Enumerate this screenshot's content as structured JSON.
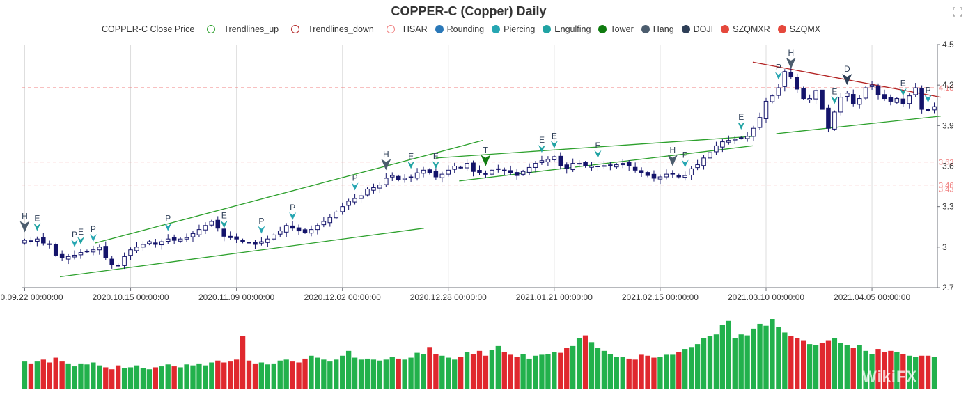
{
  "chart_data": {
    "type": "candlestick",
    "title": "COPPER-C (Copper) Daily",
    "legend": {
      "placement": "top-center",
      "entries": [
        {
          "name": "COPPER-C Close Price",
          "kind": "none",
          "color": ""
        },
        {
          "name": "Trendlines_up",
          "kind": "line",
          "color": "#2ca02c"
        },
        {
          "name": "Trendlines_down",
          "kind": "line",
          "color": "#b22222"
        },
        {
          "name": "HSAR",
          "kind": "line",
          "color": "#f08080"
        },
        {
          "name": "Rounding",
          "kind": "dot",
          "color": "#2a78b8"
        },
        {
          "name": "Piercing",
          "kind": "dot",
          "color": "#26a6b2"
        },
        {
          "name": "Engulfing",
          "kind": "dot",
          "color": "#20a3a3"
        },
        {
          "name": "Tower",
          "kind": "dot",
          "color": "#0f7b0f"
        },
        {
          "name": "Hang",
          "kind": "dot",
          "color": "#4c5d6e"
        },
        {
          "name": "DOJI",
          "kind": "dot",
          "color": "#2e3f57"
        },
        {
          "name": "SZQMXR",
          "kind": "dot",
          "color": "#e5483c"
        },
        {
          "name": "SZQMX",
          "kind": "dot",
          "color": "#e5483c"
        }
      ]
    },
    "x_labels": [
      "2020.09.22 00:00:00",
      "2020.10.15 00:00:00",
      "2020.11.09 00:00:00",
      "2020.12.02 00:00:00",
      "2020.12.28 00:00:00",
      "2021.01.21 00:00:00",
      "2021.02.15 00:00:00",
      "2021.03.10 00:00:00",
      "2021.04.05 00:00:00"
    ],
    "x_label_index": [
      0,
      17,
      34,
      51,
      68,
      85,
      102,
      119,
      136
    ],
    "y_ticks": [
      2.7,
      3,
      3.3,
      3.6,
      3.9,
      4.2,
      4.5
    ],
    "ylim": [
      2.7,
      4.5
    ],
    "grid_vertical": true,
    "count": 147,
    "close": [
      3.05,
      3.04,
      3.06,
      3.03,
      3.02,
      2.94,
      2.92,
      2.93,
      2.94,
      2.96,
      2.97,
      2.98,
      3,
      2.92,
      2.87,
      2.86,
      2.93,
      2.98,
      3,
      3.02,
      3.04,
      3.02,
      3.04,
      3.06,
      3.05,
      3.06,
      3.07,
      3.1,
      3.13,
      3.16,
      3.19,
      3.14,
      3.08,
      3.07,
      3.06,
      3.04,
      3.03,
      3.02,
      3.04,
      3.06,
      3.09,
      3.12,
      3.16,
      3.14,
      3.12,
      3.11,
      3.13,
      3.16,
      3.19,
      3.22,
      3.26,
      3.3,
      3.34,
      3.36,
      3.38,
      3.43,
      3.44,
      3.46,
      3.51,
      3.53,
      3.5,
      3.51,
      3.52,
      3.55,
      3.57,
      3.55,
      3.52,
      3.54,
      3.57,
      3.6,
      3.59,
      3.62,
      3.56,
      3.55,
      3.54,
      3.57,
      3.58,
      3.57,
      3.55,
      3.53,
      3.56,
      3.59,
      3.62,
      3.64,
      3.65,
      3.67,
      3.6,
      3.58,
      3.62,
      3.62,
      3.6,
      3.6,
      3.6,
      3.6,
      3.6,
      3.61,
      3.62,
      3.6,
      3.57,
      3.55,
      3.53,
      3.51,
      3.52,
      3.54,
      3.54,
      3.52,
      3.53,
      3.58,
      3.61,
      3.66,
      3.7,
      3.75,
      3.78,
      3.79,
      3.8,
      3.81,
      3.82,
      3.88,
      3.96,
      4.08,
      4.12,
      4.18,
      4.3,
      4.26,
      4.17,
      4.1,
      4.1,
      4.16,
      4.02,
      3.88,
      4,
      4.11,
      4.14,
      4.06,
      4.1,
      4.18,
      4.2,
      4.13,
      4.1,
      4.08,
      4.1,
      4.06,
      4.12,
      4.18,
      4.02,
      4.01,
      4.04
    ],
    "volume": [
      0.28,
      0.26,
      0.28,
      0.3,
      0.27,
      0.32,
      0.28,
      0.26,
      0.23,
      0.26,
      0.25,
      0.27,
      0.24,
      0.22,
      0.2,
      0.24,
      0.21,
      0.22,
      0.24,
      0.21,
      0.2,
      0.22,
      0.23,
      0.25,
      0.23,
      0.22,
      0.25,
      0.24,
      0.26,
      0.24,
      0.27,
      0.29,
      0.27,
      0.28,
      0.3,
      0.54,
      0.29,
      0.26,
      0.27,
      0.25,
      0.26,
      0.29,
      0.3,
      0.28,
      0.27,
      0.31,
      0.34,
      0.32,
      0.3,
      0.28,
      0.3,
      0.34,
      0.39,
      0.32,
      0.3,
      0.31,
      0.3,
      0.29,
      0.3,
      0.33,
      0.31,
      0.3,
      0.32,
      0.37,
      0.36,
      0.43,
      0.36,
      0.34,
      0.32,
      0.3,
      0.33,
      0.38,
      0.36,
      0.39,
      0.34,
      0.4,
      0.44,
      0.38,
      0.35,
      0.33,
      0.36,
      0.31,
      0.34,
      0.35,
      0.36,
      0.38,
      0.37,
      0.42,
      0.44,
      0.52,
      0.55,
      0.48,
      0.42,
      0.39,
      0.36,
      0.33,
      0.33,
      0.31,
      0.3,
      0.35,
      0.34,
      0.32,
      0.33,
      0.35,
      0.35,
      0.38,
      0.41,
      0.43,
      0.46,
      0.52,
      0.54,
      0.56,
      0.66,
      0.7,
      0.52,
      0.56,
      0.55,
      0.62,
      0.67,
      0.65,
      0.72,
      0.64,
      0.58,
      0.54,
      0.52,
      0.5,
      0.46,
      0.45,
      0.47,
      0.5,
      0.52,
      0.47,
      0.45,
      0.42,
      0.45,
      0.39,
      0.36,
      0.41,
      0.38,
      0.39,
      0.38,
      0.36,
      0.34,
      0.33,
      0.34,
      0.34,
      0.33
    ],
    "hsar_levels": [
      4.18,
      3.63,
      3.46,
      3.43
    ],
    "trendlines_up": [
      {
        "x0": 3,
        "y0": 2.78,
        "x1": 34,
        "y1": 3.14
      },
      {
        "x0": 6,
        "y0": 3.03,
        "x1": 39,
        "y1": 3.79
      },
      {
        "x0": 35,
        "y0": 3.66,
        "x1": 62,
        "y1": 3.82
      },
      {
        "x0": 37,
        "y0": 3.49,
        "x1": 62,
        "y1": 3.75
      },
      {
        "x0": 64,
        "y0": 3.84,
        "x1": 78,
        "y1": 3.97
      }
    ],
    "trendlines_down": [
      {
        "x0": 62,
        "y0": 4.37,
        "x1": 78,
        "y1": 4.11
      }
    ],
    "patterns": [
      {
        "label": "H",
        "x": 0,
        "type": "Hang"
      },
      {
        "label": "E",
        "x": 1,
        "type": "Engulfing"
      },
      {
        "label": "P",
        "x": 4,
        "type": "Piercing"
      },
      {
        "label": "E",
        "x": 5,
        "type": "Engulfing"
      },
      {
        "label": "P",
        "x": 6,
        "type": "Piercing"
      },
      {
        "label": "P",
        "x": 12,
        "type": "Piercing"
      },
      {
        "label": "E",
        "x": 17,
        "type": "Engulfing"
      },
      {
        "label": "P",
        "x": 20,
        "type": "Piercing"
      },
      {
        "label": "P",
        "x": 23,
        "type": "Piercing"
      },
      {
        "label": "P",
        "x": 28,
        "type": "Piercing"
      },
      {
        "label": "H",
        "x": 31,
        "type": "Hang"
      },
      {
        "label": "E",
        "x": 33,
        "type": "Engulfing"
      },
      {
        "label": "E",
        "x": 35,
        "type": "Engulfing"
      },
      {
        "label": "T",
        "x": 39,
        "type": "Tower"
      },
      {
        "label": "E",
        "x": 44,
        "type": "Engulfing"
      },
      {
        "label": "E",
        "x": 45,
        "type": "Engulfing"
      },
      {
        "label": "E",
        "x": 49,
        "type": "Engulfing"
      },
      {
        "label": "H",
        "x": 55,
        "type": "Hang"
      },
      {
        "label": "P",
        "x": 56,
        "type": "Piercing"
      },
      {
        "label": "E",
        "x": 61,
        "type": "Engulfing"
      },
      {
        "label": "P",
        "x": 64,
        "type": "Piercing"
      },
      {
        "label": "H",
        "x": 65,
        "type": "Hang"
      },
      {
        "label": "E",
        "x": 69,
        "type": "Engulfing"
      },
      {
        "label": "D",
        "x": 70,
        "type": "DOJI"
      },
      {
        "label": "E",
        "x": 75,
        "type": "Engulfing"
      },
      {
        "label": "P",
        "x": 77,
        "type": "Piercing"
      }
    ]
  }
}
